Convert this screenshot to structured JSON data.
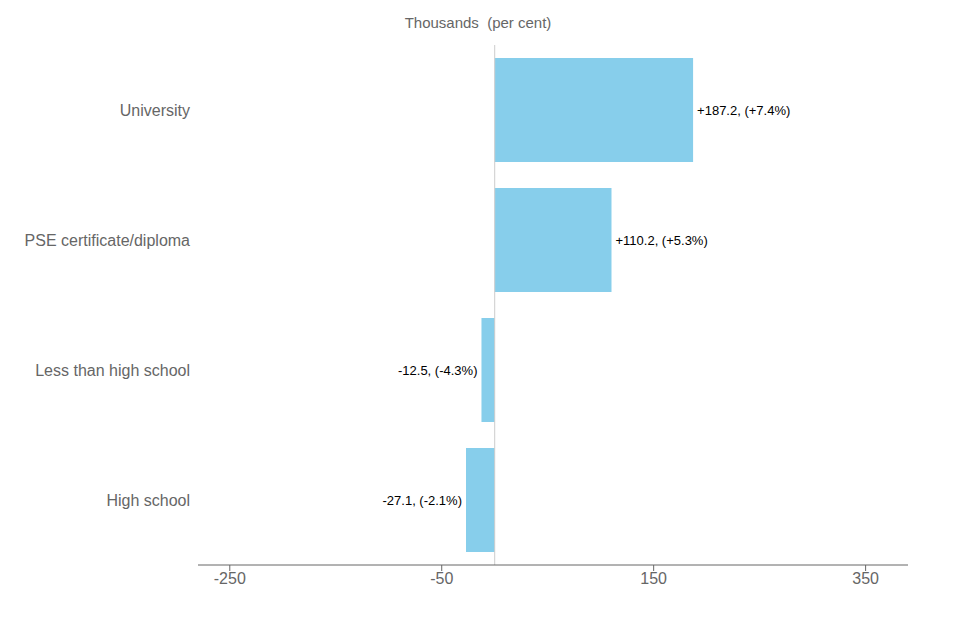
{
  "chart_data": {
    "type": "bar",
    "orientation": "horizontal",
    "title": "Thousands  (per cent)",
    "categories": [
      "University",
      "PSE certificate/diploma",
      "Less than high school",
      "High school"
    ],
    "values": [
      187.2,
      110.2,
      -12.5,
      -27.1
    ],
    "value_labels": [
      "+187.2, (+7.4%)",
      "+110.2, (+5.3%)",
      "-12.5, (-4.3%)",
      "-27.1, (-2.1%)"
    ],
    "color": "#87CEEB",
    "xlim": [
      -280,
      390
    ],
    "xticks": [
      -250,
      -50,
      150,
      350
    ],
    "grid": false,
    "data_labels": true
  }
}
